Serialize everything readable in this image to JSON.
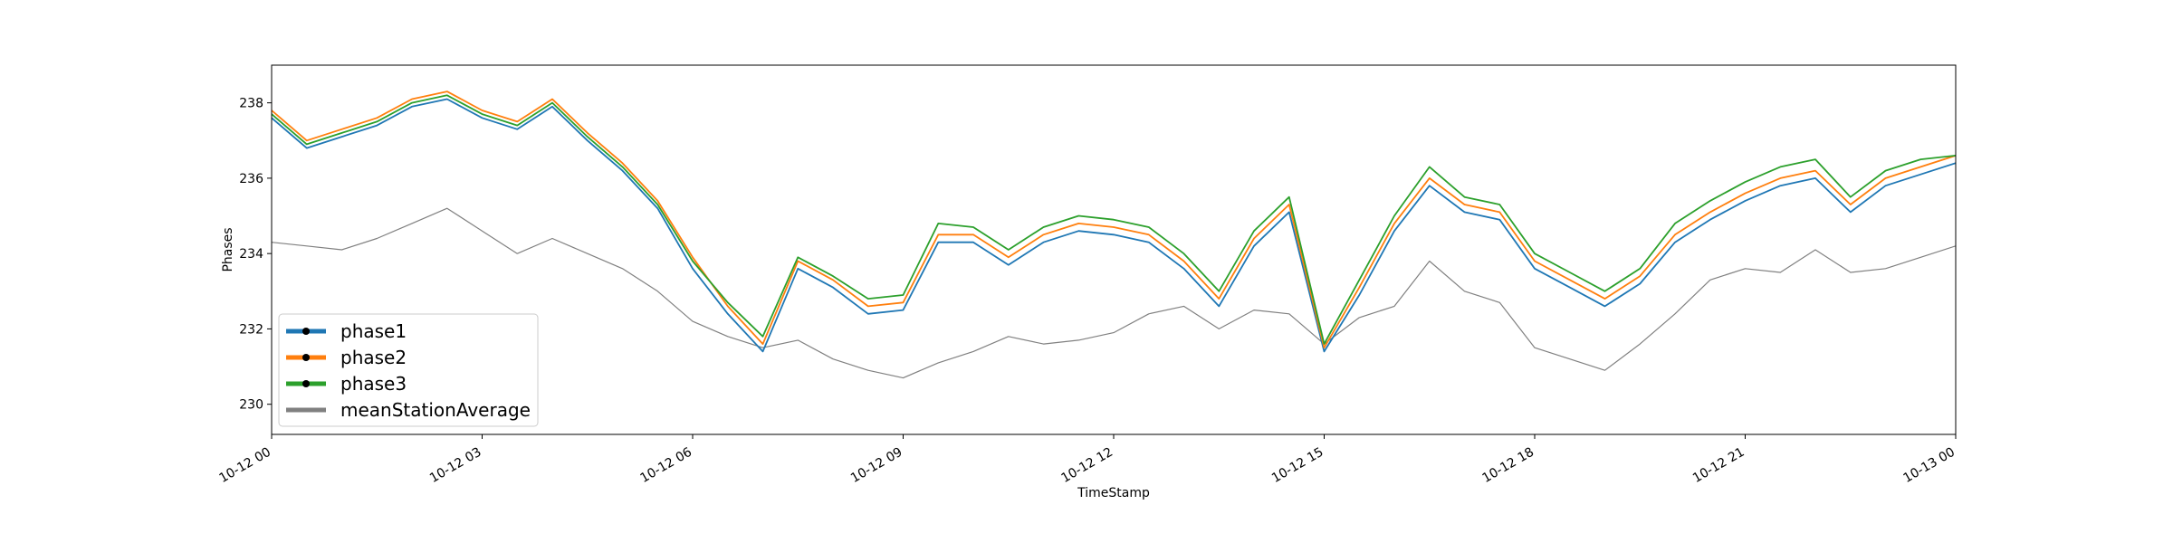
{
  "chart_data": {
    "type": "line",
    "title": "",
    "xlabel": "TimeStamp",
    "ylabel": "Phases",
    "x_ticks": [
      "10-12 00",
      "10-12 03",
      "10-12 06",
      "10-12 09",
      "10-12 12",
      "10-12 15",
      "10-12 18",
      "10-12 21",
      "10-13 00"
    ],
    "y_ticks": [
      "230",
      "232",
      "234",
      "236",
      "238"
    ],
    "xlim_hours": [
      0,
      24
    ],
    "ylim": [
      229.2,
      239.0
    ],
    "grid": false,
    "legend_position": "lower-left",
    "x": [
      0,
      0.5,
      1,
      1.5,
      2,
      2.5,
      3,
      3.5,
      4,
      4.5,
      5,
      5.5,
      6,
      6.5,
      7,
      7.5,
      8,
      8.5,
      9,
      9.5,
      10,
      10.5,
      11,
      11.5,
      12,
      12.5,
      13,
      13.5,
      14,
      14.5,
      15,
      15.5,
      16,
      16.5,
      17,
      17.5,
      18,
      18.5,
      19,
      19.5,
      20,
      20.5,
      21,
      21.5,
      22,
      22.5,
      23,
      23.5,
      24
    ],
    "series": [
      {
        "name": "phase1",
        "color": "#1f77b4",
        "values": [
          237.6,
          236.8,
          237.1,
          237.4,
          237.9,
          238.1,
          237.6,
          237.3,
          237.9,
          237.0,
          236.2,
          235.2,
          233.6,
          232.4,
          231.4,
          233.6,
          233.1,
          232.4,
          232.5,
          234.3,
          234.3,
          233.7,
          234.3,
          234.6,
          234.5,
          234.3,
          233.6,
          232.6,
          234.2,
          235.1,
          231.4,
          232.9,
          234.6,
          235.8,
          235.1,
          234.9,
          233.6,
          233.1,
          232.6,
          233.2,
          234.3,
          234.9,
          235.4,
          235.8,
          236.0,
          235.1,
          235.8,
          236.1,
          236.4
        ]
      },
      {
        "name": "phase2",
        "color": "#ff7f0e",
        "values": [
          237.8,
          237.0,
          237.3,
          237.6,
          238.1,
          238.3,
          237.8,
          237.5,
          238.1,
          237.2,
          236.4,
          235.4,
          233.9,
          232.6,
          231.6,
          233.8,
          233.3,
          232.6,
          232.7,
          234.5,
          234.5,
          233.9,
          234.5,
          234.8,
          234.7,
          234.5,
          233.8,
          232.8,
          234.4,
          235.3,
          231.5,
          233.1,
          234.8,
          236.0,
          235.3,
          235.1,
          233.8,
          233.3,
          232.8,
          233.4,
          234.5,
          235.1,
          235.6,
          236.0,
          236.2,
          235.3,
          236.0,
          236.3,
          236.6
        ]
      },
      {
        "name": "phase3",
        "color": "#2ca02c",
        "values": [
          237.7,
          236.9,
          237.2,
          237.5,
          238.0,
          238.2,
          237.7,
          237.4,
          238.0,
          237.1,
          236.3,
          235.3,
          233.8,
          232.7,
          231.8,
          233.9,
          233.4,
          232.8,
          232.9,
          234.8,
          234.7,
          234.1,
          234.7,
          235.0,
          234.9,
          234.7,
          234.0,
          233.0,
          234.6,
          235.5,
          231.6,
          233.3,
          235.0,
          236.3,
          235.5,
          235.3,
          234.0,
          233.5,
          233.0,
          233.6,
          234.8,
          235.4,
          235.9,
          236.3,
          236.5,
          235.5,
          236.2,
          236.5,
          236.6
        ]
      },
      {
        "name": "meanStationAverage",
        "color": "#808080",
        "values": [
          234.3,
          234.2,
          234.1,
          234.4,
          234.8,
          235.2,
          234.6,
          234.0,
          234.4,
          234.0,
          233.6,
          233.0,
          232.2,
          231.8,
          231.5,
          231.7,
          231.2,
          230.9,
          230.7,
          231.1,
          231.4,
          231.8,
          231.6,
          231.7,
          231.9,
          232.4,
          232.6,
          232.0,
          232.5,
          232.4,
          231.6,
          232.3,
          232.6,
          233.8,
          233.0,
          232.7,
          231.5,
          231.2,
          230.9,
          231.6,
          232.4,
          233.3,
          233.6,
          233.5,
          234.1,
          233.5,
          233.6,
          233.9,
          234.2
        ]
      }
    ]
  }
}
